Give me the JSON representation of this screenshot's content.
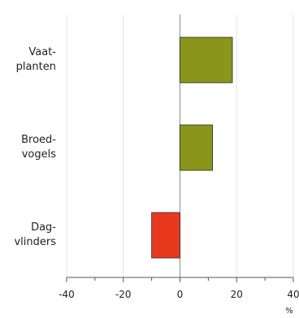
{
  "chart_data": {
    "type": "bar",
    "orientation": "horizontal",
    "categories": [
      [
        "Vaat-",
        "planten"
      ],
      [
        "Broed-",
        "vogels"
      ],
      [
        "Dag-",
        "vlinders"
      ]
    ],
    "values": [
      18.5,
      11.5,
      -10
    ],
    "bar_colors": [
      "#8a961a",
      "#8a961a",
      "#e8391e"
    ],
    "xlim": [
      -40,
      40
    ],
    "xticks": [
      -40,
      -20,
      0,
      20,
      40
    ],
    "xlabel": "%",
    "grid": "vertical",
    "legend": "none",
    "title": ""
  }
}
